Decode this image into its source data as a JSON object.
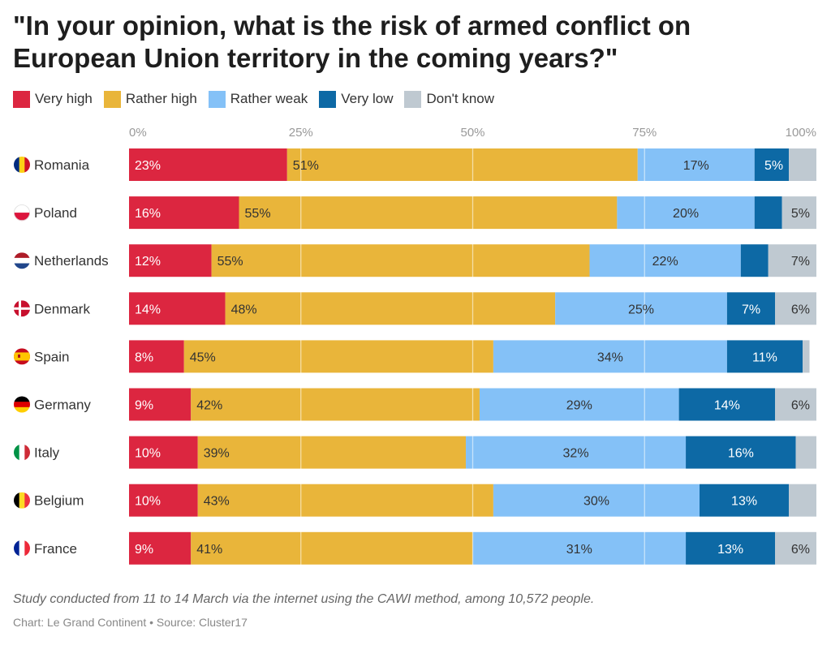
{
  "chart_data": {
    "type": "bar",
    "orientation": "horizontal",
    "stacked": true,
    "title": "\"In your opinion, what is the risk of armed conflict on European Union territory in the coming years?\"",
    "xlim": [
      0,
      100
    ],
    "x_ticks": [
      "0%",
      "25%",
      "50%",
      "75%",
      "100%"
    ],
    "grid": true,
    "legend_position": "top-left",
    "categories": [
      "Romania",
      "Poland",
      "Netherlands",
      "Denmark",
      "Spain",
      "Germany",
      "Italy",
      "Belgium",
      "France"
    ],
    "series": [
      {
        "name": "Very high",
        "color": "#dc2640",
        "values": [
          23,
          16,
          12,
          14,
          8,
          9,
          10,
          10,
          9
        ]
      },
      {
        "name": "Rather high",
        "color": "#e9b53a",
        "values": [
          51,
          55,
          55,
          48,
          45,
          42,
          39,
          43,
          41
        ]
      },
      {
        "name": "Rather weak",
        "color": "#84c1f7",
        "values": [
          17,
          20,
          22,
          25,
          34,
          29,
          32,
          30,
          31
        ]
      },
      {
        "name": "Very low",
        "color": "#0d69a5",
        "values": [
          5,
          4,
          4,
          7,
          11,
          14,
          16,
          13,
          13
        ]
      },
      {
        "name": "Don't know",
        "color": "#bfc9d1",
        "values": [
          4,
          5,
          7,
          6,
          1,
          6,
          3,
          4,
          6
        ]
      }
    ],
    "data_labels": [
      [
        "23%",
        "51%",
        "17%",
        "5%",
        ""
      ],
      [
        "16%",
        "55%",
        "20%",
        "",
        "5%"
      ],
      [
        "12%",
        "55%",
        "22%",
        "",
        "7%"
      ],
      [
        "14%",
        "48%",
        "25%",
        "7%",
        "6%"
      ],
      [
        "8%",
        "45%",
        "34%",
        "11%",
        ""
      ],
      [
        "9%",
        "42%",
        "29%",
        "14%",
        "6%"
      ],
      [
        "10%",
        "39%",
        "32%",
        "16%",
        ""
      ],
      [
        "10%",
        "43%",
        "30%",
        "13%",
        ""
      ],
      [
        "9%",
        "41%",
        "31%",
        "13%",
        "6%"
      ]
    ],
    "flag_icons": [
      "romania-flag-icon",
      "poland-flag-icon",
      "netherlands-flag-icon",
      "denmark-flag-icon",
      "spain-flag-icon",
      "germany-flag-icon",
      "italy-flag-icon",
      "belgium-flag-icon",
      "france-flag-icon"
    ]
  },
  "footnote": "Study conducted from 11 to 14 March via the internet using the CAWI method, among 10,572 people.",
  "credit": "Chart: Le Grand Continent • Source: Cluster17"
}
